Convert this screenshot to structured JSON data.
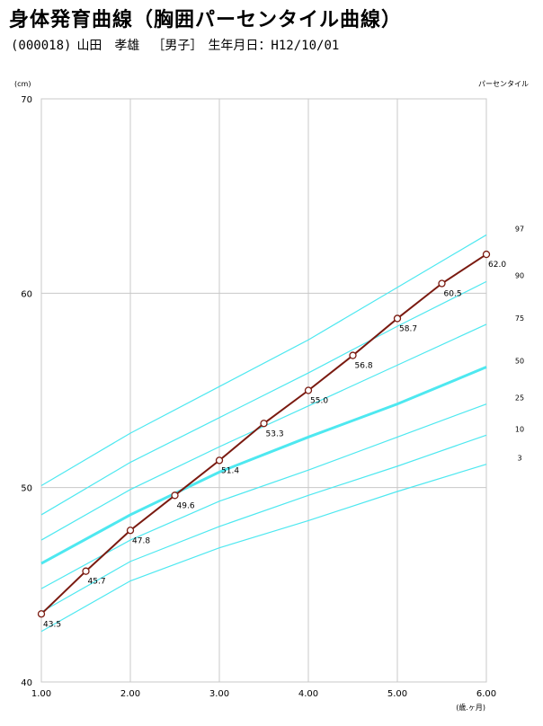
{
  "header": {
    "title": "身体発育曲線（胸囲パーセンタイル曲線）",
    "patient_id": "(000018)",
    "name": "山田　孝雄",
    "sex": "［男子］",
    "birthdate": "生年月日：H12/10/01"
  },
  "colors": {
    "percentile": "#4ee8f0",
    "series": "#7a1a10",
    "grid": "#c8c8c8"
  },
  "chart_data": {
    "type": "line",
    "title": "身体発育曲線（胸囲パーセンタイル曲線）",
    "xlabel": "(歳.ヶ月)",
    "ylabel": "(cm)",
    "legend_title": "パーセンタイル",
    "xlim": [
      1.0,
      6.0
    ],
    "ylim": [
      40,
      70
    ],
    "x_ticks": [
      "1.00",
      "2.00",
      "3.00",
      "4.00",
      "5.00",
      "6.00"
    ],
    "y_ticks": [
      "40",
      "50",
      "60",
      "70"
    ],
    "grid": true,
    "percentile_curves": [
      {
        "name": "97",
        "x": [
          1.0,
          2.0,
          3.0,
          4.0,
          5.0,
          6.0
        ],
        "y": [
          50.1,
          52.8,
          55.2,
          57.6,
          60.3,
          63.0
        ]
      },
      {
        "name": "90",
        "x": [
          1.0,
          2.0,
          3.0,
          4.0,
          5.0,
          6.0
        ],
        "y": [
          48.6,
          51.3,
          53.6,
          55.9,
          58.3,
          60.6
        ]
      },
      {
        "name": "75",
        "x": [
          1.0,
          2.0,
          3.0,
          4.0,
          5.0,
          6.0
        ],
        "y": [
          47.3,
          49.9,
          52.1,
          54.2,
          56.3,
          58.4
        ]
      },
      {
        "name": "50",
        "x": [
          1.0,
          2.0,
          3.0,
          4.0,
          5.0,
          6.0
        ],
        "y": [
          46.1,
          48.6,
          50.8,
          52.6,
          54.3,
          56.2
        ]
      },
      {
        "name": "25",
        "x": [
          1.0,
          2.0,
          3.0,
          4.0,
          5.0,
          6.0
        ],
        "y": [
          44.8,
          47.3,
          49.3,
          50.9,
          52.6,
          54.3
        ]
      },
      {
        "name": "10",
        "x": [
          1.0,
          2.0,
          3.0,
          4.0,
          5.0,
          6.0
        ],
        "y": [
          43.6,
          46.2,
          48.0,
          49.6,
          51.1,
          52.7
        ]
      },
      {
        "name": "3",
        "x": [
          1.0,
          2.0,
          3.0,
          4.0,
          5.0,
          6.0
        ],
        "y": [
          42.6,
          45.2,
          46.9,
          48.3,
          49.8,
          51.2
        ]
      }
    ],
    "series": [
      {
        "x": [
          1.0,
          1.5,
          2.0,
          2.5,
          3.0,
          3.5,
          4.0,
          4.5,
          5.0,
          5.5,
          6.0
        ],
        "values": [
          43.5,
          45.7,
          47.8,
          49.6,
          51.4,
          53.3,
          55.0,
          56.8,
          58.7,
          60.5,
          62.0
        ],
        "labels": [
          "43.5",
          "45.7",
          "47.8",
          "49.6",
          "51.4",
          "53.3",
          "55.0",
          "56.8",
          "58.7",
          "60.5",
          "62.0"
        ]
      }
    ]
  }
}
